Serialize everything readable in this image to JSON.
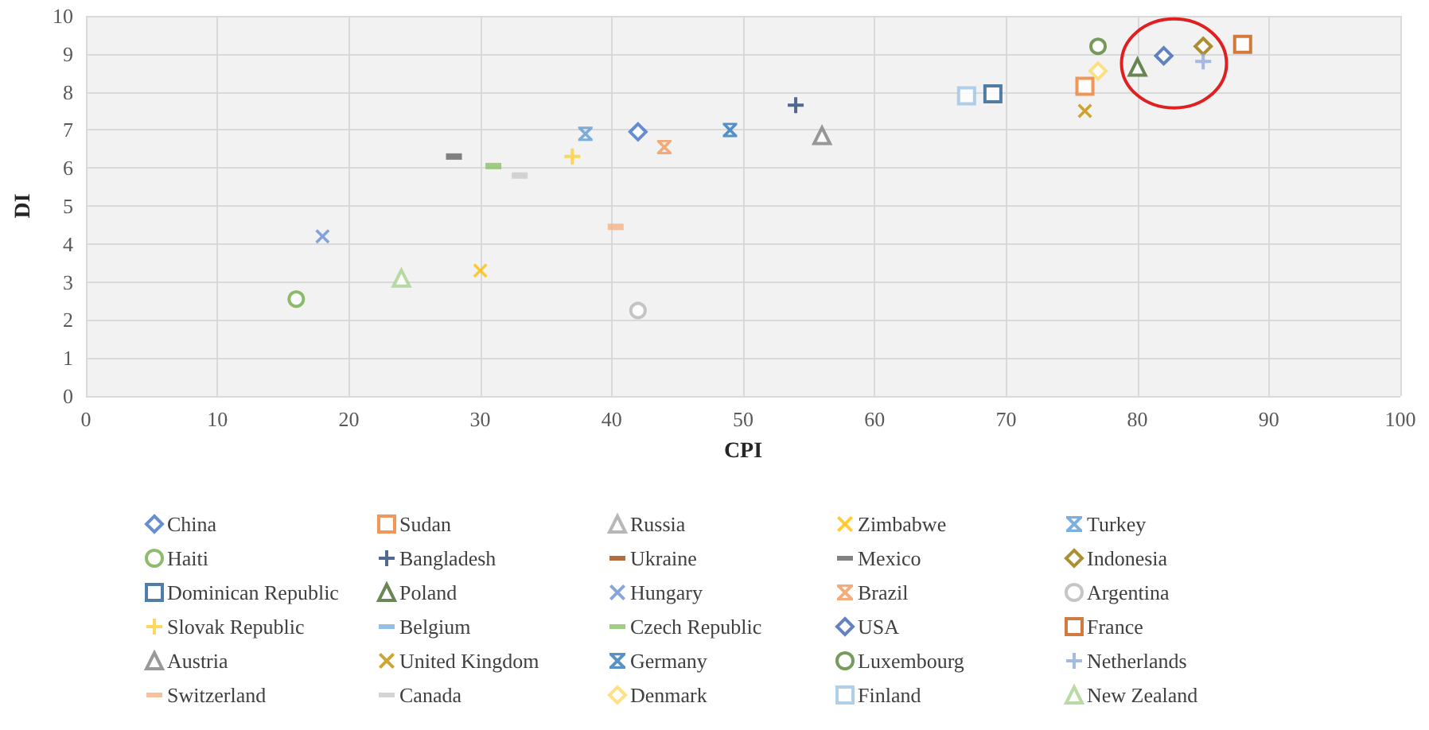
{
  "chart_data": {
    "type": "scatter",
    "xlabel": "CPI",
    "ylabel": "DI",
    "xlim": [
      0,
      100
    ],
    "ylim": [
      0,
      10
    ],
    "xticks": [
      0,
      10,
      20,
      30,
      40,
      50,
      60,
      70,
      80,
      90,
      100
    ],
    "yticks": [
      0,
      1,
      2,
      3,
      4,
      5,
      6,
      7,
      8,
      9,
      10
    ],
    "grid": true,
    "legend": "bottom",
    "series": [
      {
        "name": "China",
        "color": "#4472c4",
        "marker": "diamond",
        "x": [
          42
        ],
        "values": [
          6.95
        ]
      },
      {
        "name": "Sudan",
        "color": "#ed7d31",
        "marker": "square",
        "x": [
          76
        ],
        "values": [
          8.15
        ]
      },
      {
        "name": "Russia",
        "color": "#a5a5a5",
        "marker": "triangle",
        "x": [
          null
        ],
        "values": [
          null
        ]
      },
      {
        "name": "Zimbabwe",
        "color": "#ffc000",
        "marker": "x",
        "x": [
          30
        ],
        "values": [
          3.3
        ]
      },
      {
        "name": "Turkey",
        "color": "#5b9bd5",
        "marker": "star",
        "x": [
          38
        ],
        "values": [
          6.9
        ]
      },
      {
        "name": "Haiti",
        "color": "#70ad47",
        "marker": "circle",
        "x": [
          16
        ],
        "values": [
          2.55
        ]
      },
      {
        "name": "Bangladesh",
        "color": "#264478",
        "marker": "plus",
        "x": [
          54
        ],
        "values": [
          7.65
        ]
      },
      {
        "name": "Ukraine",
        "color": "#9e480e",
        "x": [
          null
        ],
        "values": [
          null
        ]
      },
      {
        "name": "Mexico",
        "color": "#636363",
        "x": [
          28
        ],
        "values": [
          6.3
        ]
      },
      {
        "name": "Indonesia",
        "color": "#997300",
        "marker": "diamond",
        "x": [
          85
        ],
        "values": [
          9.2
        ]
      },
      {
        "name": "Dominican Republic",
        "color": "#255e91",
        "marker": "square",
        "x": [
          69
        ],
        "values": [
          7.95
        ]
      },
      {
        "name": "Poland",
        "color": "#43682b",
        "marker": "triangle",
        "x": [
          80
        ],
        "values": [
          8.65
        ]
      },
      {
        "name": "Hungary",
        "color": "#698ed0",
        "marker": "x",
        "x": [
          18
        ],
        "values": [
          4.2
        ]
      },
      {
        "name": "Brazil",
        "color": "#f1975a",
        "marker": "star",
        "x": [
          44
        ],
        "values": [
          6.55
        ]
      },
      {
        "name": "Argentina",
        "color": "#b7b7b7",
        "marker": "circle",
        "x": [
          42
        ],
        "values": [
          2.25
        ]
      },
      {
        "name": "Slovak Republic",
        "color": "#ffcd33",
        "marker": "plus",
        "x": [
          37
        ],
        "values": [
          6.3
        ]
      },
      {
        "name": "Belgium",
        "color": "#7cafdd",
        "x": [
          null
        ],
        "values": [
          null
        ]
      },
      {
        "name": "Czech Republic",
        "color": "#8cc168",
        "x": [
          31
        ],
        "values": [
          6.05
        ]
      },
      {
        "name": "USA",
        "color": "#3b64ad",
        "marker": "diamond",
        "x": [
          82
        ],
        "values": [
          8.95
        ]
      },
      {
        "name": "France",
        "color": "#c55a11",
        "marker": "square",
        "x": [
          88
        ],
        "values": [
          9.25
        ]
      },
      {
        "name": "Austria",
        "color": "#7f7f7f",
        "marker": "triangle",
        "x": [
          56
        ],
        "values": [
          6.85
        ]
      },
      {
        "name": "United Kingdom",
        "color": "#bf8f00",
        "marker": "x",
        "x": [
          76
        ],
        "values": [
          7.5
        ]
      },
      {
        "name": "Germany",
        "color": "#2e75b6",
        "marker": "star",
        "x": [
          49
        ],
        "values": [
          7.0
        ]
      },
      {
        "name": "Luxembourg",
        "color": "#548235",
        "marker": "circle",
        "x": [
          77
        ],
        "values": [
          9.2
        ]
      },
      {
        "name": "Netherlands",
        "color": "#8faadc",
        "marker": "plus",
        "x": [
          85
        ],
        "values": [
          8.8
        ]
      },
      {
        "name": "Switzerland",
        "color": "#f4b183",
        "x": [
          40.3
        ],
        "values": [
          4.45
        ]
      },
      {
        "name": "Canada",
        "color": "#c9c9c9",
        "x": [
          33
        ],
        "values": [
          5.8
        ]
      },
      {
        "name": "Denmark",
        "color": "#ffd966",
        "marker": "diamond",
        "x": [
          77
        ],
        "values": [
          8.55
        ]
      },
      {
        "name": "Finland",
        "color": "#9dc3e6",
        "marker": "square",
        "x": [
          67
        ],
        "values": [
          7.9
        ]
      },
      {
        "name": "New Zealand",
        "color": "#a9d18e",
        "marker": "triangle",
        "x": [
          24
        ],
        "values": [
          3.1
        ]
      }
    ]
  }
}
